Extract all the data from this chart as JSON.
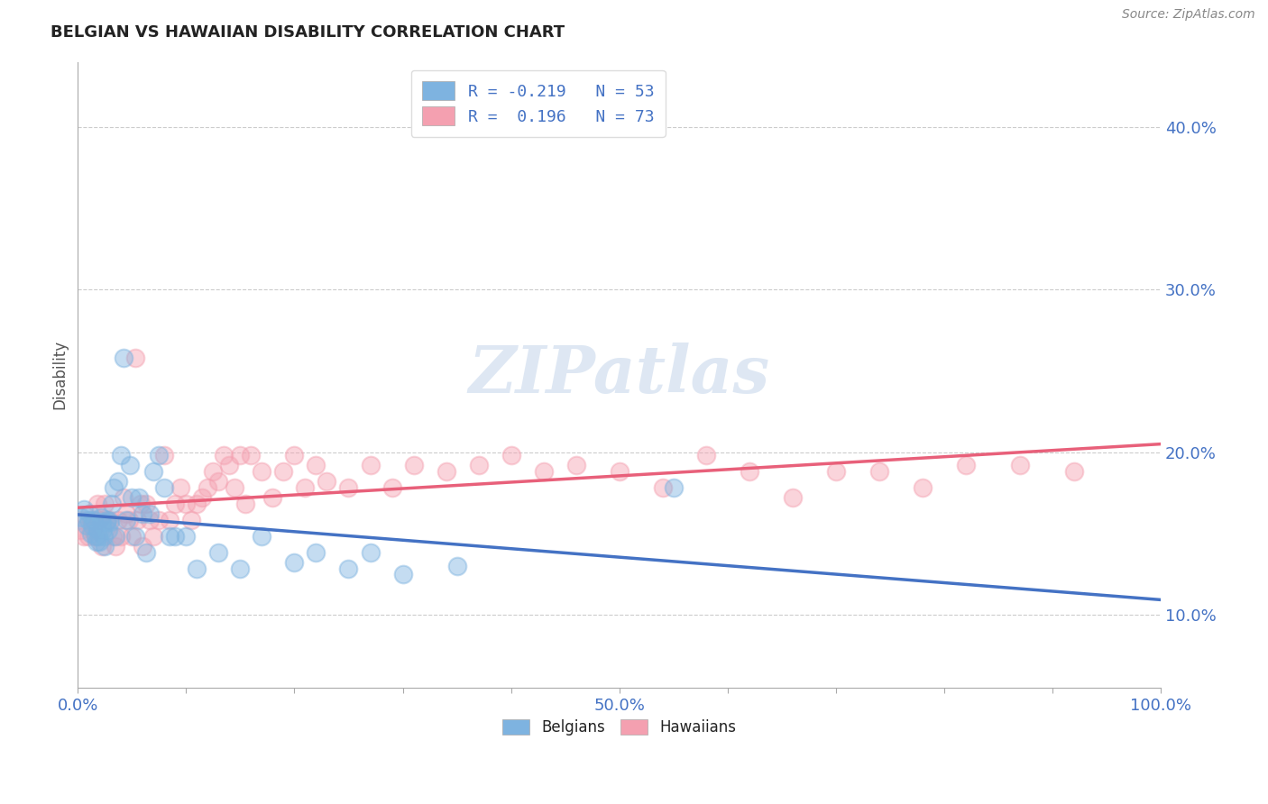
{
  "title": "BELGIAN VS HAWAIIAN DISABILITY CORRELATION CHART",
  "source": "Source: ZipAtlas.com",
  "ylabel": "Disability",
  "xlim": [
    0.0,
    1.0
  ],
  "ylim": [
    0.055,
    0.44
  ],
  "yticks": [
    0.1,
    0.2,
    0.3,
    0.4
  ],
  "ytick_labels": [
    "10.0%",
    "20.0%",
    "30.0%",
    "40.0%"
  ],
  "xticks": [
    0.0,
    0.1,
    0.2,
    0.3,
    0.4,
    0.5,
    0.6,
    0.7,
    0.8,
    0.9,
    1.0
  ],
  "xtick_labels": [
    "0.0%",
    "",
    "",
    "",
    "",
    "50.0%",
    "",
    "",
    "",
    "",
    "100.0%"
  ],
  "belgian_color": "#7eb3e0",
  "hawaiian_color": "#f4a0b0",
  "belgian_line_color": "#4472c4",
  "hawaiian_line_color": "#e8607a",
  "R_belgian": -0.219,
  "N_belgian": 53,
  "R_hawaiian": 0.196,
  "N_hawaiian": 73,
  "background_color": "#ffffff",
  "grid_color": "#cccccc",
  "belgian_x": [
    0.003,
    0.006,
    0.008,
    0.01,
    0.011,
    0.012,
    0.013,
    0.015,
    0.016,
    0.017,
    0.018,
    0.019,
    0.02,
    0.021,
    0.022,
    0.023,
    0.024,
    0.025,
    0.026,
    0.027,
    0.028,
    0.03,
    0.031,
    0.033,
    0.035,
    0.037,
    0.04,
    0.042,
    0.045,
    0.048,
    0.05,
    0.053,
    0.056,
    0.06,
    0.063,
    0.066,
    0.07,
    0.075,
    0.08,
    0.085,
    0.09,
    0.1,
    0.11,
    0.13,
    0.15,
    0.17,
    0.2,
    0.22,
    0.25,
    0.27,
    0.3,
    0.35,
    0.55
  ],
  "belgian_y": [
    0.16,
    0.165,
    0.155,
    0.158,
    0.162,
    0.15,
    0.155,
    0.158,
    0.148,
    0.145,
    0.152,
    0.148,
    0.145,
    0.16,
    0.157,
    0.152,
    0.148,
    0.142,
    0.157,
    0.158,
    0.152,
    0.157,
    0.168,
    0.178,
    0.148,
    0.182,
    0.198,
    0.258,
    0.158,
    0.192,
    0.172,
    0.148,
    0.172,
    0.162,
    0.138,
    0.162,
    0.188,
    0.198,
    0.178,
    0.148,
    0.148,
    0.148,
    0.128,
    0.138,
    0.128,
    0.148,
    0.132,
    0.138,
    0.128,
    0.138,
    0.125,
    0.13,
    0.178
  ],
  "hawaiian_x": [
    0.002,
    0.004,
    0.006,
    0.01,
    0.012,
    0.014,
    0.016,
    0.018,
    0.02,
    0.022,
    0.025,
    0.027,
    0.03,
    0.032,
    0.035,
    0.037,
    0.04,
    0.042,
    0.045,
    0.047,
    0.05,
    0.053,
    0.055,
    0.058,
    0.06,
    0.063,
    0.066,
    0.07,
    0.075,
    0.08,
    0.085,
    0.09,
    0.095,
    0.1,
    0.105,
    0.11,
    0.115,
    0.12,
    0.125,
    0.13,
    0.135,
    0.14,
    0.145,
    0.15,
    0.155,
    0.16,
    0.17,
    0.18,
    0.19,
    0.2,
    0.21,
    0.22,
    0.23,
    0.25,
    0.27,
    0.29,
    0.31,
    0.34,
    0.37,
    0.4,
    0.43,
    0.46,
    0.5,
    0.54,
    0.58,
    0.62,
    0.66,
    0.7,
    0.74,
    0.78,
    0.82,
    0.87,
    0.92
  ],
  "hawaiian_y": [
    0.152,
    0.158,
    0.148,
    0.148,
    0.158,
    0.152,
    0.148,
    0.168,
    0.158,
    0.142,
    0.168,
    0.158,
    0.158,
    0.148,
    0.142,
    0.158,
    0.148,
    0.172,
    0.162,
    0.158,
    0.148,
    0.258,
    0.158,
    0.168,
    0.142,
    0.168,
    0.158,
    0.148,
    0.158,
    0.198,
    0.158,
    0.168,
    0.178,
    0.168,
    0.158,
    0.168,
    0.172,
    0.178,
    0.188,
    0.182,
    0.198,
    0.192,
    0.178,
    0.198,
    0.168,
    0.198,
    0.188,
    0.172,
    0.188,
    0.198,
    0.178,
    0.192,
    0.182,
    0.178,
    0.192,
    0.178,
    0.192,
    0.188,
    0.192,
    0.198,
    0.188,
    0.192,
    0.188,
    0.178,
    0.198,
    0.188,
    0.172,
    0.188,
    0.188,
    0.178,
    0.192,
    0.192,
    0.188
  ]
}
